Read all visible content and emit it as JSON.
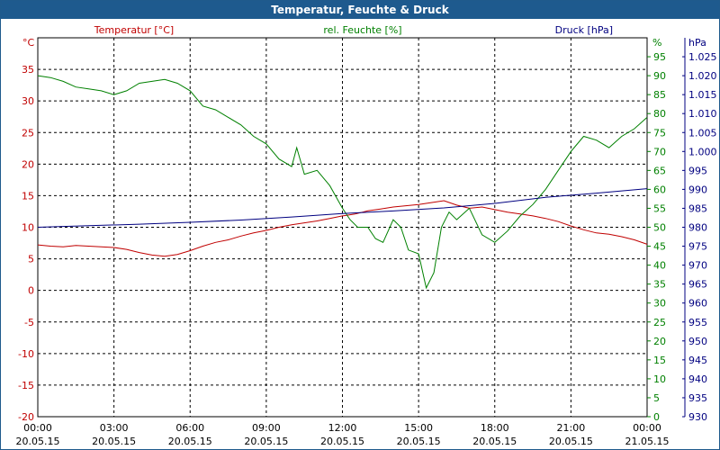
{
  "title": "Temperatur, Feuchte & Druck",
  "chart_data": {
    "type": "line",
    "title": "Temperatur, Feuchte & Druck",
    "x_ticks": [
      {
        "time": "00:00",
        "date": "20.05.15"
      },
      {
        "time": "03:00",
        "date": "20.05.15"
      },
      {
        "time": "06:00",
        "date": "20.05.15"
      },
      {
        "time": "09:00",
        "date": "20.05.15"
      },
      {
        "time": "12:00",
        "date": "20.05.15"
      },
      {
        "time": "15:00",
        "date": "20.05.15"
      },
      {
        "time": "18:00",
        "date": "20.05.15"
      },
      {
        "time": "21:00",
        "date": "20.05.15"
      },
      {
        "time": "00:00",
        "date": "21.05.15"
      }
    ],
    "xlim_hours": [
      0,
      24
    ],
    "axes": {
      "temperature": {
        "label": "Temperatur [°C]",
        "unit": "°C",
        "ylim": [
          -20,
          40
        ],
        "ticks": [
          "-20",
          "-15",
          "-10",
          "-5",
          "0",
          "5",
          "10",
          "15",
          "20",
          "25",
          "30",
          "35"
        ],
        "color": "#c00000"
      },
      "humidity": {
        "label": "rel. Feuchte [%]",
        "unit": "%",
        "ylim": [
          0,
          100
        ],
        "ticks": [
          "0",
          "5",
          "10",
          "15",
          "20",
          "25",
          "30",
          "35",
          "40",
          "45",
          "50",
          "55",
          "60",
          "65",
          "70",
          "75",
          "80",
          "85",
          "90",
          "95"
        ],
        "color": "#008000"
      },
      "pressure": {
        "label": "Druck [hPa]",
        "unit": "hPa",
        "ylim": [
          930,
          1030
        ],
        "ticks": [
          "930",
          "935",
          "940",
          "945",
          "950",
          "955",
          "960",
          "965",
          "970",
          "975",
          "980",
          "985",
          "990",
          "995",
          "1.000",
          "1.005",
          "1.010",
          "1.015",
          "1.020",
          "1.025"
        ],
        "color": "#000080"
      }
    },
    "series": [
      {
        "name": "Temperatur",
        "axis": "temperature",
        "color": "#c00000",
        "x": [
          0,
          0.5,
          1,
          1.5,
          2,
          2.5,
          3,
          3.5,
          4,
          4.5,
          5,
          5.5,
          6,
          6.5,
          7,
          7.5,
          8,
          8.5,
          9,
          9.5,
          10,
          10.5,
          11,
          11.5,
          12,
          12.5,
          13,
          13.5,
          14,
          14.5,
          15,
          15.5,
          16,
          16.5,
          17,
          17.5,
          18,
          18.5,
          19,
          19.5,
          20,
          20.5,
          21,
          21.5,
          22,
          22.5,
          23,
          23.5,
          24
        ],
        "values": [
          7.2,
          7.0,
          6.9,
          7.1,
          7.0,
          6.9,
          6.8,
          6.5,
          6.0,
          5.6,
          5.4,
          5.7,
          6.3,
          7.0,
          7.6,
          8.0,
          8.6,
          9.1,
          9.5,
          10.0,
          10.4,
          10.7,
          11.0,
          11.4,
          11.8,
          12.1,
          12.6,
          12.9,
          13.2,
          13.4,
          13.6,
          13.9,
          14.2,
          13.5,
          13.0,
          13.2,
          12.8,
          12.4,
          12.1,
          11.8,
          11.4,
          10.9,
          10.2,
          9.6,
          9.1,
          8.9,
          8.5,
          8.0,
          7.3
        ]
      },
      {
        "name": "rel. Feuchte",
        "axis": "humidity",
        "color": "#008000",
        "x": [
          0,
          0.5,
          1,
          1.5,
          2,
          2.5,
          3,
          3.5,
          4,
          4.5,
          5,
          5.5,
          6,
          6.5,
          7,
          7.5,
          8,
          8.5,
          9,
          9.5,
          10,
          10.2,
          10.5,
          11,
          11.5,
          12,
          12.3,
          12.6,
          13,
          13.3,
          13.6,
          14,
          14.3,
          14.6,
          15,
          15.3,
          15.6,
          15.9,
          16.2,
          16.5,
          17,
          17.5,
          18,
          18.5,
          19,
          19.5,
          20,
          20.5,
          21,
          21.5,
          22,
          22.5,
          23,
          23.5,
          24
        ],
        "values": [
          90,
          89.5,
          88.5,
          87,
          86.5,
          86,
          85,
          86,
          88,
          88.5,
          89,
          88,
          86,
          82,
          81,
          79,
          77,
          74,
          72,
          68,
          66,
          71,
          64,
          65,
          61,
          55,
          52,
          50,
          50,
          47,
          46,
          52,
          50,
          44,
          43,
          34,
          38,
          50,
          54,
          52,
          55,
          48,
          46,
          49,
          53,
          56,
          60,
          65,
          70,
          74,
          73,
          71,
          74,
          76,
          79
        ]
      },
      {
        "name": "Druck",
        "axis": "pressure",
        "color": "#000080",
        "x": [
          0,
          2,
          4,
          6,
          8,
          10,
          12,
          14,
          16,
          18,
          20,
          22,
          24
        ],
        "values": [
          980.0,
          980.4,
          980.8,
          981.3,
          981.9,
          982.7,
          983.6,
          984.3,
          985.1,
          986.3,
          987.9,
          989.0,
          990.2
        ]
      }
    ]
  }
}
